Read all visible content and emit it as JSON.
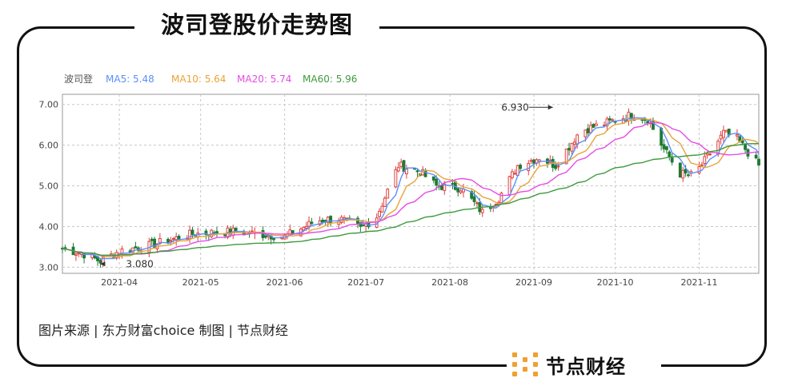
{
  "page_title": "波司登股价走势图",
  "source_note": "图片来源 | 东方财富choice    制图 | 节点财经",
  "brand": {
    "name": "节点财经",
    "logo_icon": "node-finance-logo-icon",
    "logo_color": "#f0a030"
  },
  "colors": {
    "up": "#e0413c",
    "down": "#1e7a34",
    "ma5": "#5b8ff9",
    "ma10": "#e8a33a",
    "ma20": "#e64ce6",
    "ma60": "#3f9a3f"
  },
  "chart_data": {
    "type": "candlestick",
    "legend": [
      {
        "name": "波司登",
        "value": ""
      },
      {
        "name": "MA5",
        "value": "5.48"
      },
      {
        "name": "MA10",
        "value": "5.64"
      },
      {
        "name": "MA20",
        "value": "5.74"
      },
      {
        "name": "MA60",
        "value": "5.96"
      }
    ],
    "y_ticks": [
      "7.00",
      "6.00",
      "5.00",
      "4.00",
      "3.00"
    ],
    "ylim": [
      2.85,
      7.25
    ],
    "x_ticks": [
      "2021-04",
      "2021-05",
      "2021-06",
      "2021-07",
      "2021-08",
      "2021-09",
      "2021-10",
      "2021-11"
    ],
    "annotations": [
      {
        "text": "6.930",
        "label_position": "left",
        "date": "2021-09-15"
      },
      {
        "text": "3.080",
        "label_position": "right",
        "date": "2021-04-01"
      }
    ],
    "grid": true,
    "close_by_month_approx": {
      "2021-04": 3.45,
      "2021-05": 3.85,
      "2021-06": 4.05,
      "2021-07": 5.5,
      "2021-08": 4.6,
      "2021-09": 6.45,
      "2021-10": 5.3,
      "2021-11": 5.9
    }
  }
}
